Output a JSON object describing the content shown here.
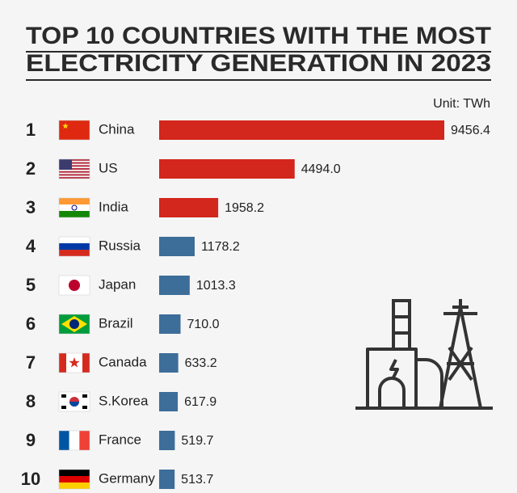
{
  "chart_data": {
    "type": "bar",
    "orientation": "horizontal",
    "title": [
      "TOP 10 COUNTRIES WITH THE MOST",
      "ELECTRICITY GENERATION IN 2023"
    ],
    "unit": "Unit: TWh",
    "ranks": [
      "1",
      "2",
      "3",
      "4",
      "5",
      "6",
      "7",
      "8",
      "9",
      "10"
    ],
    "categories": [
      "China",
      "US",
      "India",
      "Russia",
      "Japan",
      "Brazil",
      "Canada",
      "S.Korea",
      "France",
      "Germany"
    ],
    "values": [
      9456.4,
      4494,
      1958.2,
      1178.2,
      1013.3,
      710,
      633.2,
      617.9,
      519.7,
      513.7
    ],
    "value_labels": [
      "9456.4",
      "4494.0",
      "1958.2",
      "1178.2",
      "1013.3",
      "710.0",
      "633.2",
      "617.9",
      "519.7",
      "513.7"
    ],
    "colors": [
      "#d3261c",
      "#d3261c",
      "#d3261c",
      "#3d6d99",
      "#3d6d99",
      "#3d6d99",
      "#3d6d99",
      "#3d6d99",
      "#3d6d99",
      "#3d6d99"
    ]
  }
}
